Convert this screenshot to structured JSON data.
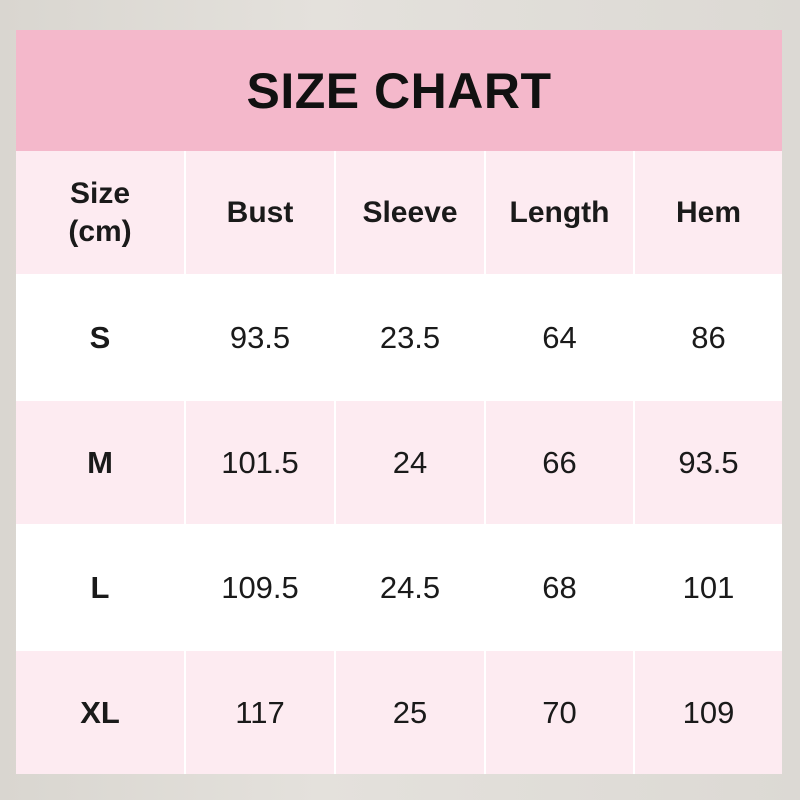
{
  "title": "SIZE CHART",
  "headers": [
    "Size\n(cm)",
    "Bust",
    "Sleeve",
    "Length",
    "Hem"
  ],
  "rows": [
    [
      "S",
      "93.5",
      "23.5",
      "64",
      "86"
    ],
    [
      "M",
      "101.5",
      "24",
      "66",
      "93.5"
    ],
    [
      "L",
      "109.5",
      "24.5",
      "68",
      "101"
    ],
    [
      "XL",
      "117",
      "25",
      "70",
      "109"
    ]
  ],
  "colors": {
    "title_band": "#f4b8cb",
    "alt_row": "#fdebf1"
  }
}
